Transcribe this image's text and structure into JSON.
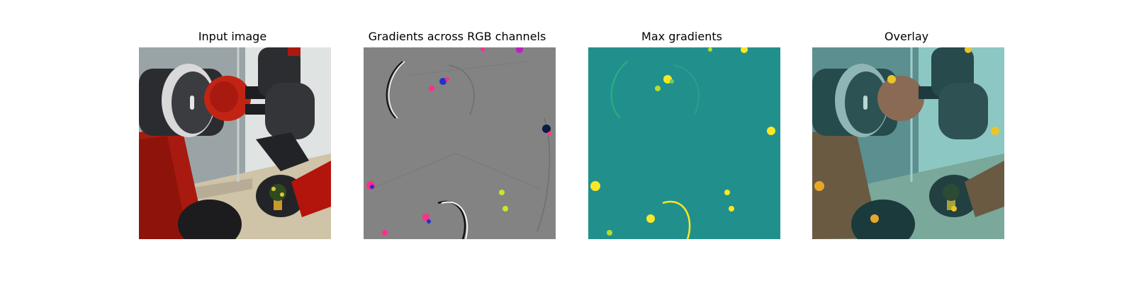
{
  "figure": {
    "panels": [
      {
        "title": "Input image",
        "content": "robot-arm-photo"
      },
      {
        "title": "Gradients across RGB channels",
        "content": "rgb-gradient-map"
      },
      {
        "title": "Max gradients",
        "content": "max-gradient-heatmap"
      },
      {
        "title": "Overlay",
        "content": "gradient-overlay-photo"
      }
    ]
  },
  "colors": {
    "figure_background": "#ffffff",
    "gradient_gray": "#838383",
    "heatmap_teal": "#21908d",
    "heatmap_yellow": "#fde725",
    "robot_red": "#b3140c"
  }
}
